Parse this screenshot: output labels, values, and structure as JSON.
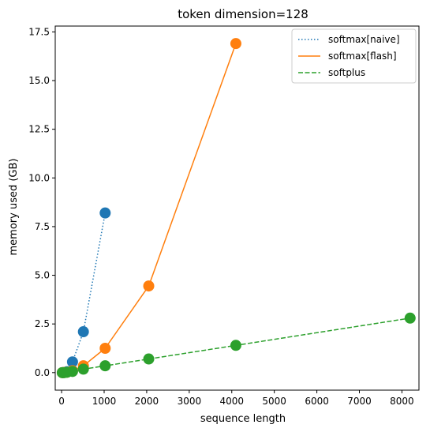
{
  "chart_data": {
    "type": "line",
    "title": "token dimension=128",
    "xlabel": "sequence length",
    "ylabel": "memory used (GB)",
    "xlim": [
      -150,
      8400
    ],
    "ylim": [
      -0.9,
      17.8
    ],
    "xticks": [
      0,
      1000,
      2000,
      3000,
      4000,
      5000,
      6000,
      7000,
      8000
    ],
    "yticks": [
      0.0,
      2.5,
      5.0,
      7.5,
      10.0,
      12.5,
      15.0,
      17.5
    ],
    "xtick_labels": [
      "0",
      "1000",
      "2000",
      "3000",
      "4000",
      "5000",
      "6000",
      "7000",
      "8000"
    ],
    "ytick_labels": [
      "0.0",
      "2.5",
      "5.0",
      "7.5",
      "10.0",
      "12.5",
      "15.0",
      "17.5"
    ],
    "grid": false,
    "legend_position": "top-right",
    "series": [
      {
        "name": "softmax[naive]",
        "color": "#1f77b4",
        "line_style": "dotted",
        "x": [
          16,
          32,
          64,
          128,
          256,
          512,
          1024
        ],
        "y": [
          0.0,
          0.0,
          0.01,
          0.05,
          0.55,
          2.1,
          8.2
        ]
      },
      {
        "name": "softmax[flash]",
        "color": "#ff7f0e",
        "line_style": "solid",
        "x": [
          16,
          32,
          64,
          128,
          256,
          512,
          1024,
          2048,
          4096
        ],
        "y": [
          0.0,
          0.0,
          0.01,
          0.02,
          0.1,
          0.35,
          1.25,
          4.45,
          16.9
        ]
      },
      {
        "name": "softplus",
        "color": "#2ca02c",
        "line_style": "dashed",
        "x": [
          16,
          32,
          64,
          128,
          256,
          512,
          1024,
          2048,
          4096,
          8192
        ],
        "y": [
          0.0,
          0.0,
          0.0,
          0.02,
          0.06,
          0.18,
          0.35,
          0.7,
          1.4,
          2.8
        ]
      }
    ]
  }
}
